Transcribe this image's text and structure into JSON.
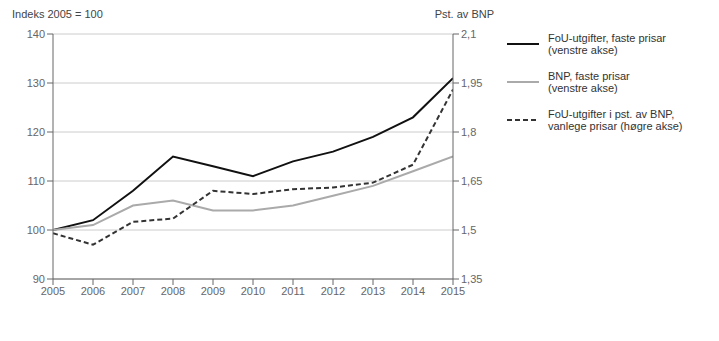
{
  "chart_data": {
    "type": "line",
    "x": [
      2005,
      2006,
      2007,
      2008,
      2009,
      2010,
      2011,
      2012,
      2013,
      2014,
      2015
    ],
    "xlim": [
      2005,
      2015
    ],
    "xticks": [
      2005,
      2006,
      2007,
      2008,
      2009,
      2010,
      2011,
      2012,
      2013,
      2014,
      2015
    ],
    "y_label": "Indeks 2005 = 100",
    "y2_label": "Pst. av BNP",
    "ylim": [
      90,
      140
    ],
    "yticks": [
      90,
      100,
      110,
      120,
      130,
      140
    ],
    "y2lim": [
      1.35,
      2.1
    ],
    "y2ticks": [
      {
        "value": 1.35,
        "label": "1,35"
      },
      {
        "value": 1.5,
        "label": "1,5"
      },
      {
        "value": 1.65,
        "label": "1,65"
      },
      {
        "value": 1.8,
        "label": "1,8"
      },
      {
        "value": 1.95,
        "label": "1,95"
      },
      {
        "value": 2.1,
        "label": "2,1"
      }
    ],
    "grid": true,
    "legend": "right",
    "series": [
      {
        "name": "FoU-utgifter, faste prisar\n(venstre akse)",
        "color": "#111111",
        "line_style": "solid",
        "values": [
          100,
          102,
          108,
          115,
          113,
          111,
          114,
          116,
          119,
          123,
          131
        ]
      },
      {
        "name": "BNP, faste prisar\n(venstre akse)",
        "color": "#aaaaaa",
        "line_style": "solid",
        "values": [
          100,
          101,
          105,
          106,
          104,
          104,
          105,
          107,
          109,
          112,
          115
        ]
      },
      {
        "name": "FoU-utgifter i pst. av BNP,\nvanlege prisar (høgre akse)",
        "color": "#333333",
        "line_style": "dashed",
        "axis": "y2",
        "values": [
          1.49,
          1.455,
          1.525,
          1.535,
          1.62,
          1.61,
          1.625,
          1.63,
          1.645,
          1.7,
          1.93
        ]
      }
    ]
  }
}
